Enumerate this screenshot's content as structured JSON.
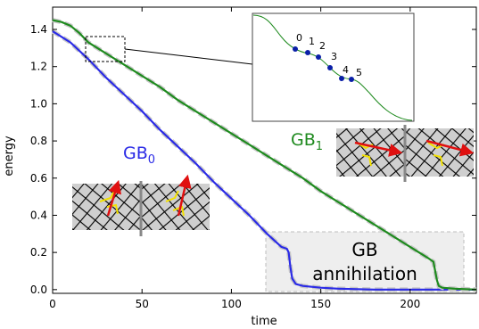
{
  "chart_data": {
    "type": "line",
    "xlabel": "time",
    "ylabel": "energy",
    "xlim": [
      0,
      237
    ],
    "ylim": [
      -0.02,
      1.52
    ],
    "xticks": [
      0,
      50,
      100,
      150,
      200
    ],
    "yticks": [
      0.0,
      0.2,
      0.4,
      0.6,
      0.8,
      1.0,
      1.2,
      1.4
    ],
    "xtick_labels": [
      "0",
      "50",
      "100",
      "150",
      "200"
    ],
    "ytick_labels": [
      "0.0",
      "0.2",
      "0.4",
      "0.6",
      "0.8",
      "1.0",
      "1.2",
      "1.4"
    ],
    "grid": false,
    "series": [
      {
        "name": "GB0",
        "color": "#2a2ae6",
        "x": [
          0,
          10,
          20,
          30,
          40,
          50,
          60,
          70,
          80,
          90,
          100,
          110,
          120,
          128,
          131,
          132,
          133,
          134,
          136,
          140,
          150,
          160,
          180,
          200,
          237
        ],
        "y": [
          1.39,
          1.33,
          1.24,
          1.14,
          1.05,
          0.96,
          0.86,
          0.77,
          0.68,
          0.58,
          0.49,
          0.4,
          0.3,
          0.23,
          0.22,
          0.2,
          0.12,
          0.06,
          0.03,
          0.02,
          0.01,
          0.005,
          0.0,
          0.0,
          0.0
        ]
      },
      {
        "name": "GB1",
        "color": "#1e8a1e",
        "x": [
          0,
          5,
          10,
          15,
          20,
          30,
          40,
          50,
          60,
          70,
          80,
          90,
          100,
          110,
          120,
          130,
          140,
          150,
          160,
          170,
          180,
          190,
          200,
          210,
          213,
          214,
          215,
          216,
          218,
          225,
          237
        ],
        "y": [
          1.45,
          1.44,
          1.42,
          1.38,
          1.33,
          1.27,
          1.21,
          1.15,
          1.09,
          1.02,
          0.96,
          0.9,
          0.84,
          0.78,
          0.72,
          0.66,
          0.6,
          0.53,
          0.47,
          0.41,
          0.35,
          0.29,
          0.23,
          0.17,
          0.15,
          0.1,
          0.05,
          0.02,
          0.01,
          0.005,
          0.0
        ]
      }
    ],
    "annotations": {
      "gb0_label_main": "GB",
      "gb0_label_sub": "0",
      "gb1_label_main": "GB",
      "gb1_label_sub": "1",
      "annihilation_line1": "GB",
      "annihilation_line2": "annihilation",
      "inset_point_labels": [
        "0",
        "1",
        "2",
        "3",
        "4",
        "5"
      ]
    }
  },
  "colors": {
    "gb0": "#2a2ae6",
    "gb1": "#1e8a1e",
    "reference": "#c8c8c8",
    "arrow": "#e01010",
    "highlight_box": "#eeeeee"
  }
}
